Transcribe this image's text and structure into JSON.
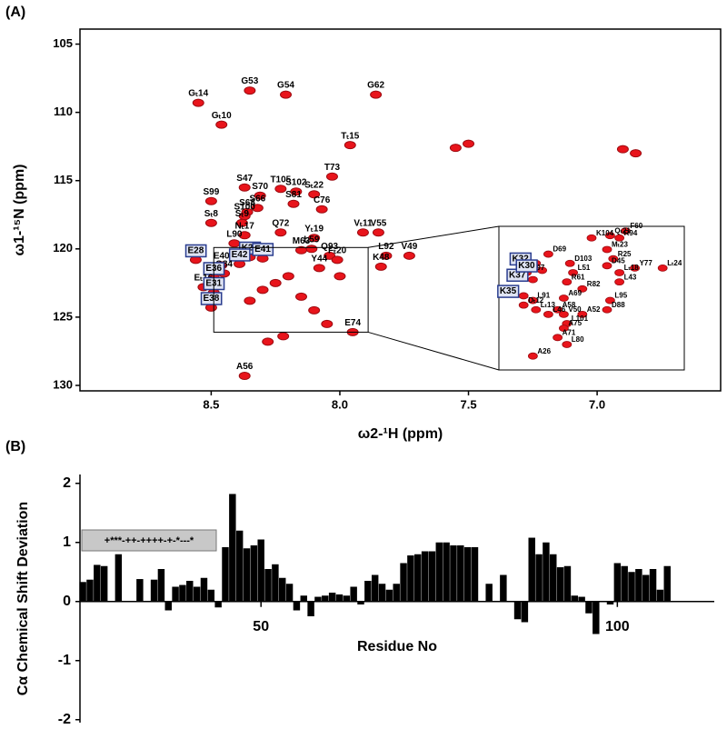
{
  "panel_labels": [
    "(A)",
    "(B)"
  ],
  "chart_data": [
    {
      "type": "scatter",
      "xlabel": "ω2-¹H (ppm)",
      "ylabel": "ω1-¹⁵N (ppm)",
      "xlim": [
        9.01,
        6.52
      ],
      "ylim": [
        103.9,
        130.4
      ],
      "xticks": [
        8.5,
        {
          "value": 8,
          "label": "8.0"
        },
        7.5,
        {
          "value": 7,
          "label": "7.0"
        }
      ],
      "yticks": [
        105,
        110,
        115,
        120,
        125,
        130
      ],
      "color": "#e8141b",
      "x": [
        8.55,
        8.35,
        8.21,
        7.86,
        8.46,
        7.96,
        8.03,
        8.37,
        8.23,
        8.17,
        8.1,
        8.31,
        8.32,
        8.36,
        8.18,
        8.07,
        8.5,
        8.5,
        8.37,
        8.38,
        8.23,
        8.37,
        8.41,
        8.1,
        7.91,
        7.85,
        8.11,
        8.15,
        8.04,
        8.01,
        7.82,
        7.73,
        8.08,
        7.84,
        8.56,
        8.46,
        8.35,
        8.3,
        8.39,
        8.45,
        8.49,
        8.53,
        8.49,
        8.5,
        7.95,
        8.37,
        7.55,
        7.5,
        6.85,
        6.9,
        8.25,
        8.3,
        8.2,
        8.15,
        8.35,
        8.1,
        8.0,
        8.28,
        8.22,
        8.05
      ],
      "y": [
        109.3,
        108.4,
        108.7,
        108.7,
        110.9,
        112.4,
        114.7,
        115.5,
        115.6,
        115.8,
        116.0,
        116.1,
        117.0,
        117.3,
        116.7,
        117.1,
        116.5,
        118.1,
        117.6,
        118.1,
        118.8,
        119.0,
        119.6,
        119.2,
        118.8,
        118.8,
        120.0,
        120.1,
        120.5,
        120.8,
        120.5,
        120.5,
        121.4,
        121.3,
        120.8,
        121.2,
        120.6,
        120.7,
        121.1,
        121.8,
        122.1,
        122.8,
        123.2,
        124.3,
        126.1,
        129.3,
        112.6,
        112.3,
        113.0,
        112.7,
        122.5,
        123.0,
        122.0,
        123.5,
        123.8,
        124.5,
        122.0,
        126.8,
        126.4,
        125.5
      ],
      "labels": [
        "Gₜ14",
        "G53",
        "G54",
        "G62",
        "Gₜ10",
        "Tₜ15",
        "T73",
        "S47",
        "T105",
        "S102",
        "Sₜ22",
        "S70",
        "S66",
        "S68",
        "S81",
        "C76",
        "S99",
        "Sₜ8",
        "S100",
        "Sₜ9",
        "Q72",
        "Nₜ17",
        "L90",
        "Yₜ19",
        "Vₜ11",
        "V55",
        "L59",
        "M63",
        "Q93",
        "Fₜ20",
        "L92",
        "V49",
        "Y44",
        "K48",
        "E28",
        "E40",
        "K29",
        "E41",
        "E42",
        "Q84",
        "E36",
        "Eₜ16",
        "E31",
        "E38",
        "E74",
        "A56",
        null,
        null,
        null,
        null,
        null,
        null,
        null,
        null,
        null,
        null,
        null,
        null,
        null,
        null
      ],
      "boxed": [
        false,
        false,
        false,
        false,
        false,
        false,
        false,
        false,
        false,
        false,
        false,
        false,
        false,
        false,
        false,
        false,
        false,
        false,
        false,
        false,
        false,
        false,
        false,
        false,
        false,
        false,
        false,
        false,
        false,
        false,
        false,
        false,
        false,
        false,
        true,
        false,
        true,
        true,
        true,
        false,
        true,
        false,
        true,
        true,
        false,
        false,
        false,
        false,
        false,
        false,
        false,
        false,
        false,
        false,
        false,
        false,
        false,
        false,
        false,
        false
      ],
      "inset": {
        "xlim": [
          8.49,
          7.89
        ],
        "ylim": [
          119.9,
          126.1
        ],
        "x": [
          8.37,
          8.4,
          8.38,
          8.41,
          8.41,
          8.37,
          8.38,
          8.33,
          8.3,
          8.28,
          8.28,
          8.35,
          8.33,
          8.19,
          8.13,
          8.08,
          8.14,
          8.1,
          8.12,
          8.14,
          8.26,
          8.25,
          8.27,
          8.22,
          8.1,
          8.05,
          7.96,
          8.1,
          8.13,
          8.14,
          8.22,
          8.27,
          8.28,
          8.3,
          8.27,
          8.38
        ],
        "y": [
          121.5,
          121.9,
          122.2,
          122.9,
          123.3,
          123.5,
          123.1,
          123.7,
          123.5,
          123.0,
          123.7,
          121.8,
          121.1,
          120.4,
          120.3,
          120.1,
          120.9,
          120.4,
          121.3,
          121.6,
          121.5,
          121.9,
          122.3,
          122.6,
          121.9,
          121.7,
          121.7,
          122.3,
          123.1,
          123.5,
          123.7,
          124.1,
          124.3,
          124.7,
          125.0,
          125.5
        ],
        "labels": [
          "K32",
          "R97",
          "K37",
          "K35",
          "Dₜ12",
          "Lₜ13",
          "L91",
          "L46",
          "A58",
          "A69",
          "V50",
          "K30",
          "D69",
          "K104",
          "Qₜ21",
          "F60",
          "Mₜ23",
          "R94",
          "R25",
          "D45",
          "D103",
          "L51",
          "R61",
          "R82",
          "Lₜ18",
          "Y77",
          "Lₜ24",
          "L43",
          "L95",
          "D88",
          "A52",
          "L101",
          "A75",
          "A71",
          "L80",
          "A26"
        ],
        "boxed": [
          true,
          false,
          true,
          true,
          false,
          false,
          false,
          false,
          false,
          false,
          false,
          true,
          false,
          false,
          false,
          false,
          false,
          false,
          false,
          false,
          false,
          false,
          false,
          false,
          false,
          false,
          false,
          false,
          false,
          false,
          false,
          false,
          false,
          false,
          false,
          false
        ]
      }
    },
    {
      "type": "bar",
      "xlabel": "Residue No",
      "ylabel": "Cα Chemical Shift Deviation",
      "annotation": "+***-++-++++-+-*---*",
      "xlim": [
        24.6,
        113.6
      ],
      "ylim": [
        -2.05,
        2.15
      ],
      "xticks": [
        50,
        100
      ],
      "yticks": [
        -2,
        -1,
        0,
        1,
        2
      ],
      "color": "#000000",
      "x": [
        25,
        26,
        27,
        28,
        30,
        33,
        35,
        36,
        37,
        38,
        39,
        40,
        41,
        42,
        43,
        44,
        45,
        46,
        47,
        48,
        49,
        50,
        51,
        52,
        53,
        54,
        55,
        56,
        57,
        58,
        59,
        60,
        61,
        62,
        63,
        64,
        65,
        66,
        67,
        68,
        69,
        70,
        71,
        72,
        73,
        74,
        75,
        76,
        77,
        78,
        79,
        80,
        82,
        84,
        86,
        87,
        88,
        89,
        90,
        91,
        92,
        93,
        94,
        95,
        96,
        97,
        99,
        100,
        101,
        102,
        103,
        104,
        105,
        106,
        107
      ],
      "values": [
        0.33,
        0.37,
        0.62,
        0.6,
        0.8,
        0.38,
        0.37,
        0.55,
        -0.15,
        0.25,
        0.28,
        0.35,
        0.25,
        0.4,
        0.2,
        -0.1,
        0.92,
        1.82,
        1.2,
        0.9,
        0.95,
        1.05,
        0.55,
        0.63,
        0.4,
        0.3,
        -0.15,
        0.1,
        -0.25,
        0.08,
        0.1,
        0.15,
        0.12,
        0.1,
        0.25,
        -0.05,
        0.35,
        0.45,
        0.3,
        0.2,
        0.3,
        0.65,
        0.78,
        0.8,
        0.85,
        0.85,
        1.0,
        1.0,
        0.95,
        0.95,
        0.92,
        0.92,
        0.3,
        0.45,
        -0.3,
        -0.35,
        1.08,
        0.8,
        1.0,
        0.8,
        0.58,
        0.6,
        0.1,
        0.08,
        -0.2,
        -0.55,
        -0.05,
        0.65,
        0.6,
        0.5,
        0.55,
        0.45,
        0.55,
        0.2,
        0.6
      ]
    }
  ]
}
